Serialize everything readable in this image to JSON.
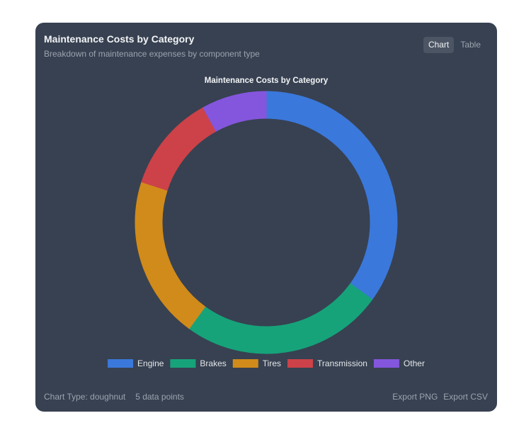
{
  "card": {
    "title": "Maintenance Costs by Category",
    "subtitle": "Breakdown of maintenance expenses by component type"
  },
  "toggle": {
    "chart_label": "Chart",
    "table_label": "Table",
    "active": "chart"
  },
  "footer": {
    "chart_type": "Chart Type: doughnut",
    "data_points": "5 data points",
    "export_png": "Export PNG",
    "export_csv": "Export CSV"
  },
  "chart_data": {
    "type": "doughnut",
    "title": "Maintenance Costs by Category",
    "categories": [
      "Engine",
      "Brakes",
      "Tires",
      "Transmission",
      "Other"
    ],
    "values": [
      35,
      25,
      20,
      12,
      8
    ],
    "colors": [
      "#3b78db",
      "#17a37a",
      "#d18b1a",
      "#cc4248",
      "#8456dd"
    ],
    "legend_position": "bottom",
    "background": "#374151"
  }
}
